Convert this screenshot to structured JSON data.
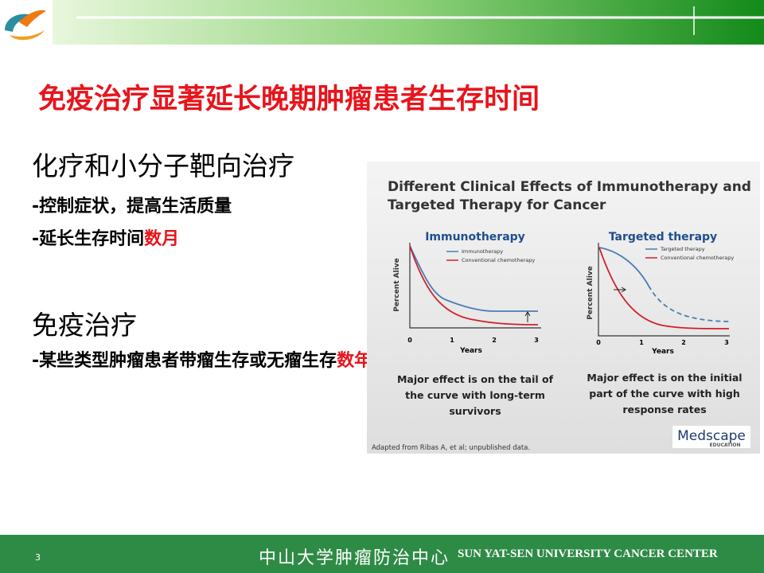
{
  "header": {
    "title": "免疫治疗显著延长晚期肿瘤患者生存时间"
  },
  "sections": [
    {
      "heading": "化疗和小分子靶向治疗",
      "items": [
        {
          "parts": [
            "-控制症状，提高生活质量"
          ]
        },
        {
          "parts": [
            "-延长生存时间",
            "数月"
          ]
        }
      ]
    },
    {
      "heading": "免疫治疗",
      "items": [
        {
          "parts": [
            "-某些类型肿瘤患者带瘤生存或无瘤生存",
            "数年"
          ]
        }
      ]
    }
  ],
  "figure": {
    "title": [
      "Different Clinical Effects of Immunotherapy and",
      "Targeted Therapy for Cancer"
    ],
    "panels": [
      {
        "title": "Immunotherapy",
        "legend": [
          "Immunotherapy",
          "Conventional chemotherapy"
        ],
        "y_label": "Percent Alive",
        "x_label": "Years",
        "x_ticks": [
          0,
          1,
          2,
          3
        ],
        "caption": [
          "Major effect is on the tail of",
          "the curve with long-term",
          "survivors"
        ]
      },
      {
        "title": "Targeted therapy",
        "legend": [
          "Targeted therapy",
          "Conventional chemotherapy"
        ],
        "y_label": "Percent Alive",
        "x_label": "Years",
        "x_ticks": [
          0,
          1,
          2,
          3
        ],
        "caption": [
          "Major effect is on the initial",
          "part of the curve with high",
          "response rates"
        ]
      }
    ],
    "source": "Adapted from Ribas A, et al; unpublished data.",
    "logo": "Medscape",
    "logo_sub": "EDUCATION"
  },
  "footer": {
    "page_number": "3",
    "org_cn": "中山大学肿瘤防治中心",
    "org_en": "SUN YAT-SEN UNIVERSITY CANCER CENTER"
  }
}
